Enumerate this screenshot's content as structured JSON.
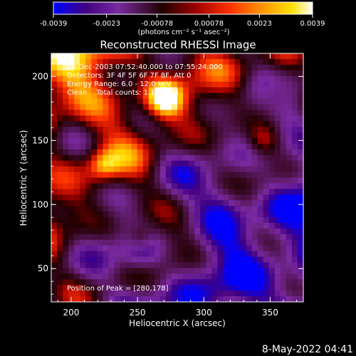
{
  "chart_data": {
    "type": "heatmap",
    "title": "Reconstructed RHESSI Image",
    "xlabel": "Heliocentric X (arcsec)",
    "ylabel": "Heliocentric Y (arcsec)",
    "xlim": [
      185,
      375
    ],
    "ylim": [
      24,
      218
    ],
    "x_ticks": [
      "200",
      "250",
      "300",
      "350"
    ],
    "y_ticks": [
      "50",
      "100",
      "150",
      "200"
    ],
    "colorbar": {
      "range": [
        -0.0039,
        0.0039
      ],
      "ticks": [
        "-0.0039",
        "-0.0023",
        "-0.00078",
        "0.00078",
        "0.0023",
        "0.0039"
      ],
      "unit_label": "(photons cm⁻² s⁻¹ asec⁻²)",
      "stops": [
        "#0000ff",
        "#400080",
        "#7a2aa0",
        "#200000",
        "#a00000",
        "#ff3000",
        "#ff9000",
        "#ffe000",
        "#ffffff"
      ]
    },
    "annotations": {
      "time": "26-Dec-2003 07:52:40.000 to 07:55:24.000",
      "detectors": "Detectors: 3F 4F 5F 6F 7F 8F, Att 0",
      "energy": "Energy Range: 6.0 - 12.0 keV",
      "clean": "Clean    Total counts: 1.10E+04",
      "peak": "Position of Peak = [280,178]"
    },
    "peak": {
      "x": 280,
      "y": 178
    },
    "grid": false
  },
  "footer": {
    "date": "8-May-2022 04:41"
  }
}
